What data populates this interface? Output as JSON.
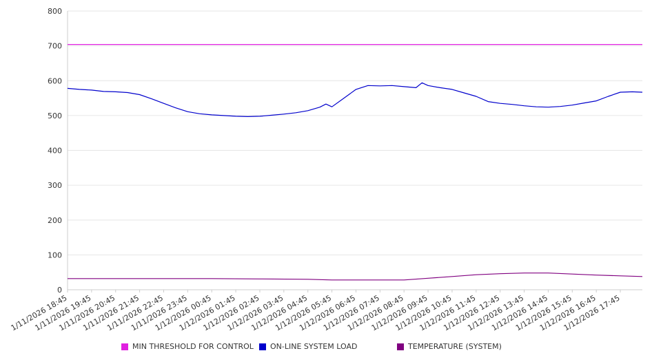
{
  "chart_data": {
    "type": "line",
    "ylim": [
      0,
      800
    ],
    "yticks": [
      0,
      100,
      200,
      300,
      400,
      500,
      600,
      700,
      800
    ],
    "grid": true,
    "legend_position": "bottom",
    "x_tick_labels": [
      "1/11/2026 18:45",
      "1/11/2026 19:45",
      "1/11/2026 20:45",
      "1/11/2026 21:45",
      "1/11/2026 22:45",
      "1/11/2026 23:45",
      "1/12/2026 00:45",
      "1/12/2026 01:45",
      "1/12/2026 02:45",
      "1/12/2026 03:45",
      "1/12/2026 04:45",
      "1/12/2026 05:45",
      "1/12/2026 06:45",
      "1/12/2026 07:45",
      "1/12/2026 08:45",
      "1/12/2026 09:45",
      "1/12/2026 10:45",
      "1/12/2026 11:45",
      "1/12/2026 12:45",
      "1/12/2026 13:45",
      "1/12/2026 14:45",
      "1/12/2026 15:45",
      "1/12/2026 16:45",
      "1/12/2026 17:45"
    ],
    "x_range": [
      "1/11/2026 18:45",
      "1/12/2026 18:40"
    ],
    "series": [
      {
        "name": "MIN THRESHOLD FOR CONTROL",
        "color": "#e020e0",
        "x": [
          "1/11/2026 18:45",
          "1/12/2026 18:40"
        ],
        "values": [
          704,
          704
        ]
      },
      {
        "name": "ON-LINE SYSTEM LOAD",
        "color": "#0000cc",
        "x": [
          "1/11/2026 18:45",
          "1/11/2026 19:15",
          "1/11/2026 19:45",
          "1/11/2026 20:15",
          "1/11/2026 20:45",
          "1/11/2026 21:15",
          "1/11/2026 21:45",
          "1/11/2026 22:15",
          "1/11/2026 22:45",
          "1/11/2026 23:15",
          "1/11/2026 23:45",
          "1/12/2026 00:15",
          "1/12/2026 00:45",
          "1/12/2026 01:15",
          "1/12/2026 01:45",
          "1/12/2026 02:15",
          "1/12/2026 02:45",
          "1/12/2026 03:15",
          "1/12/2026 03:45",
          "1/12/2026 04:15",
          "1/12/2026 04:45",
          "1/12/2026 05:15",
          "1/12/2026 05:30",
          "1/12/2026 05:45",
          "1/12/2026 06:15",
          "1/12/2026 06:45",
          "1/12/2026 07:15",
          "1/12/2026 07:45",
          "1/12/2026 08:15",
          "1/12/2026 08:45",
          "1/12/2026 09:15",
          "1/12/2026 09:30",
          "1/12/2026 09:45",
          "1/12/2026 10:15",
          "1/12/2026 10:45",
          "1/12/2026 11:15",
          "1/12/2026 11:45",
          "1/12/2026 12:15",
          "1/12/2026 12:45",
          "1/12/2026 13:15",
          "1/12/2026 13:45",
          "1/12/2026 14:15",
          "1/12/2026 14:45",
          "1/12/2026 15:15",
          "1/12/2026 15:45",
          "1/12/2026 16:15",
          "1/12/2026 16:45",
          "1/12/2026 17:15",
          "1/12/2026 17:45",
          "1/12/2026 18:15",
          "1/12/2026 18:40"
        ],
        "values": [
          578,
          575,
          573,
          569,
          568,
          566,
          560,
          548,
          535,
          522,
          511,
          505,
          502,
          500,
          498,
          497,
          498,
          501,
          504,
          508,
          514,
          524,
          533,
          525,
          550,
          575,
          586,
          585,
          586,
          583,
          580,
          594,
          586,
          580,
          575,
          565,
          555,
          540,
          535,
          532,
          528,
          525,
          524,
          526,
          530,
          536,
          542,
          555,
          567,
          568,
          567
        ]
      },
      {
        "name": "TEMPERATURE (SYSTEM)",
        "color": "#800080",
        "x": [
          "1/11/2026 18:45",
          "1/11/2026 21:45",
          "1/12/2026 00:45",
          "1/12/2026 02:45",
          "1/12/2026 04:45",
          "1/12/2026 05:45",
          "1/12/2026 07:45",
          "1/12/2026 08:45",
          "1/12/2026 09:45",
          "1/12/2026 10:45",
          "1/12/2026 11:45",
          "1/12/2026 12:45",
          "1/12/2026 13:45",
          "1/12/2026 14:45",
          "1/12/2026 15:45",
          "1/12/2026 16:45",
          "1/12/2026 17:45",
          "1/12/2026 18:40"
        ],
        "values": [
          32,
          32,
          32,
          31,
          30,
          28,
          28,
          28,
          33,
          38,
          43,
          46,
          48,
          48,
          45,
          42,
          40,
          38
        ]
      }
    ]
  }
}
